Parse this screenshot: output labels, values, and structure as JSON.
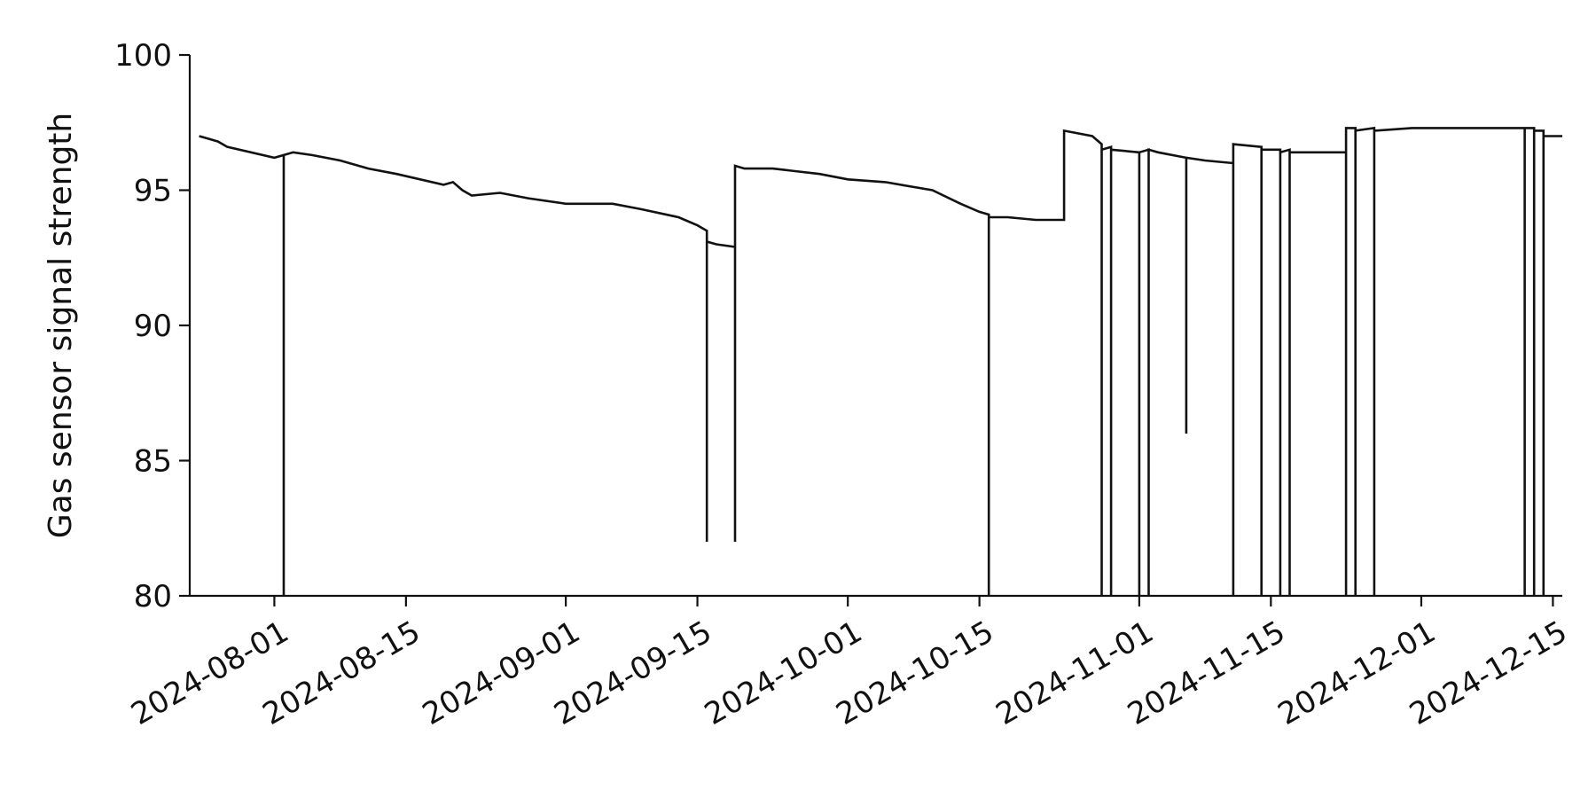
{
  "chart_data": {
    "type": "line",
    "title": "",
    "xlabel": "",
    "ylabel": "Gas sensor signal strength",
    "xlim": [
      "2024-07-23",
      "2024-12-16"
    ],
    "ylim": [
      80,
      100
    ],
    "x_ticks": [
      "2024-08-01",
      "2024-08-15",
      "2024-09-01",
      "2024-09-15",
      "2024-10-01",
      "2024-10-15",
      "2024-11-01",
      "2024-11-15",
      "2024-12-01",
      "2024-12-15"
    ],
    "y_ticks": [
      80,
      85,
      90,
      95,
      100
    ],
    "grid": false,
    "line_color": "#111111",
    "series": [
      {
        "x": [
          "2024-07-24",
          "2024-07-25",
          "2024-07-26",
          "2024-07-27",
          "2024-08-01",
          "2024-08-02",
          "2024-08-02",
          "2024-08-02",
          "2024-08-03",
          "2024-08-05",
          "2024-08-08",
          "2024-08-11",
          "2024-08-14",
          "2024-08-19",
          "2024-08-20",
          "2024-08-21",
          "2024-08-22",
          "2024-08-25",
          "2024-08-28",
          "2024-09-01",
          "2024-09-06",
          "2024-09-09",
          "2024-09-13",
          "2024-09-15",
          "2024-09-16",
          "2024-09-16",
          "2024-09-16",
          "2024-09-16",
          "2024-09-17",
          "2024-09-19",
          "2024-09-19",
          "2024-09-19",
          "2024-09-19",
          "2024-09-20",
          "2024-09-23",
          "2024-09-28",
          "2024-10-01",
          "2024-10-05",
          "2024-10-10",
          "2024-10-13",
          "2024-10-15",
          "2024-10-16",
          "2024-10-16",
          "2024-10-16",
          "2024-10-17",
          "2024-10-18",
          "2024-10-21",
          "2024-10-24",
          "2024-10-24",
          "2024-10-27",
          "2024-10-28",
          "2024-10-28",
          "2024-10-28",
          "2024-10-29",
          "2024-10-29",
          "2024-10-29",
          "2024-11-01",
          "2024-11-01",
          "2024-11-01",
          "2024-11-02",
          "2024-11-02",
          "2024-11-02",
          "2024-11-03",
          "2024-11-06",
          "2024-11-06",
          "2024-11-06",
          "2024-11-08",
          "2024-11-11",
          "2024-11-11",
          "2024-11-11",
          "2024-11-11",
          "2024-11-14",
          "2024-11-14",
          "2024-11-14",
          "2024-11-15",
          "2024-11-16",
          "2024-11-16",
          "2024-11-16",
          "2024-11-17",
          "2024-11-17",
          "2024-11-17",
          "2024-11-18",
          "2024-11-19",
          "2024-11-23",
          "2024-11-23",
          "2024-11-23",
          "2024-11-24",
          "2024-11-24",
          "2024-11-24",
          "2024-11-26",
          "2024-11-26",
          "2024-11-26",
          "2024-11-30",
          "2024-12-04",
          "2024-12-08",
          "2024-12-12",
          "2024-12-12",
          "2024-12-12",
          "2024-12-13",
          "2024-12-13",
          "2024-12-13",
          "2024-12-14",
          "2024-12-14",
          "2024-12-14",
          "2024-12-15",
          "2024-12-16"
        ],
        "y": [
          97.0,
          96.9,
          96.8,
          96.6,
          96.2,
          96.3,
          80.0,
          96.3,
          96.4,
          96.3,
          96.1,
          95.8,
          95.6,
          95.2,
          95.3,
          95.0,
          94.8,
          94.9,
          94.7,
          94.5,
          94.5,
          94.3,
          94.0,
          93.7,
          93.5,
          82.0,
          93.0,
          93.1,
          93.0,
          92.9,
          82.0,
          95.9,
          95.9,
          95.8,
          95.8,
          95.6,
          95.4,
          95.3,
          95.0,
          94.5,
          94.2,
          94.1,
          80.0,
          94.0,
          94.0,
          94.0,
          93.9,
          93.9,
          97.2,
          97.0,
          96.7,
          80.0,
          96.5,
          96.6,
          80.0,
          96.5,
          96.4,
          80.0,
          96.4,
          96.5,
          80.0,
          96.5,
          96.4,
          96.2,
          86.0,
          96.2,
          96.1,
          96.0,
          80.0,
          96.7,
          96.7,
          96.6,
          80.0,
          96.5,
          96.5,
          96.5,
          80.0,
          96.4,
          96.5,
          80.0,
          96.4,
          96.4,
          96.4,
          96.4,
          80.0,
          97.3,
          97.3,
          80.0,
          97.2,
          97.3,
          80.0,
          97.2,
          97.3,
          97.3,
          97.3,
          97.3,
          80.0,
          97.3,
          97.3,
          80.0,
          97.2,
          97.2,
          80.0,
          97.0,
          97.0,
          97.0
        ]
      }
    ]
  }
}
